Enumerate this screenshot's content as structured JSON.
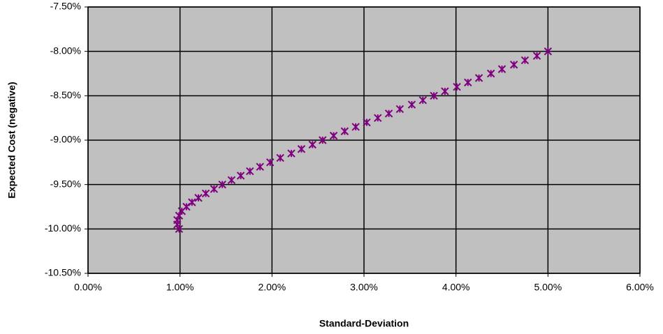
{
  "chart_data": {
    "type": "scatter",
    "x_label": "Standard-Deviation",
    "y_label": "Expected Cost (negative)",
    "color": "#800080",
    "plot_background": "#c0c0c0",
    "grid": true,
    "xlim": [
      0,
      6
    ],
    "ylim": [
      -10.5,
      -7.5
    ],
    "xticks": [
      {
        "value": 0,
        "label": "0.00%"
      },
      {
        "value": 1,
        "label": "1.00%"
      },
      {
        "value": 2,
        "label": "2.00%"
      },
      {
        "value": 3,
        "label": "3.00%"
      },
      {
        "value": 4,
        "label": "4.00%"
      },
      {
        "value": 5,
        "label": "5.00%"
      },
      {
        "value": 6,
        "label": "6.00%"
      }
    ],
    "yticks": [
      {
        "value": -7.5,
        "label": "-7.50%"
      },
      {
        "value": -8,
        "label": "-8.00%"
      },
      {
        "value": -8.5,
        "label": "-8.50%"
      },
      {
        "value": -9,
        "label": "-9.00%"
      },
      {
        "value": -9.5,
        "label": "-9.50%"
      },
      {
        "value": -10,
        "label": "-10.00%"
      },
      {
        "value": -10.5,
        "label": "-10.50%"
      }
    ],
    "x": [
      0.99,
      0.97,
      0.97,
      0.99,
      1.02,
      1.07,
      1.13,
      1.2,
      1.28,
      1.37,
      1.46,
      1.56,
      1.66,
      1.76,
      1.87,
      1.98,
      2.09,
      2.21,
      2.32,
      2.44,
      2.55,
      2.67,
      2.79,
      2.91,
      3.03,
      3.15,
      3.27,
      3.39,
      3.52,
      3.64,
      3.76,
      3.88,
      4.01,
      4.13,
      4.25,
      4.38,
      4.5,
      4.63,
      4.75,
      4.88,
      5.0
    ],
    "values": [
      -10.0,
      -9.95,
      -9.9,
      -9.85,
      -9.8,
      -9.75,
      -9.7,
      -9.65,
      -9.6,
      -9.55,
      -9.5,
      -9.45,
      -9.4,
      -9.35,
      -9.3,
      -9.25,
      -9.2,
      -9.15,
      -9.1,
      -9.05,
      -9.0,
      -8.95,
      -8.9,
      -8.85,
      -8.8,
      -8.75,
      -8.7,
      -8.65,
      -8.6,
      -8.55,
      -8.5,
      -8.45,
      -8.4,
      -8.35,
      -8.3,
      -8.25,
      -8.2,
      -8.15,
      -8.1,
      -8.05,
      -8.0
    ]
  }
}
